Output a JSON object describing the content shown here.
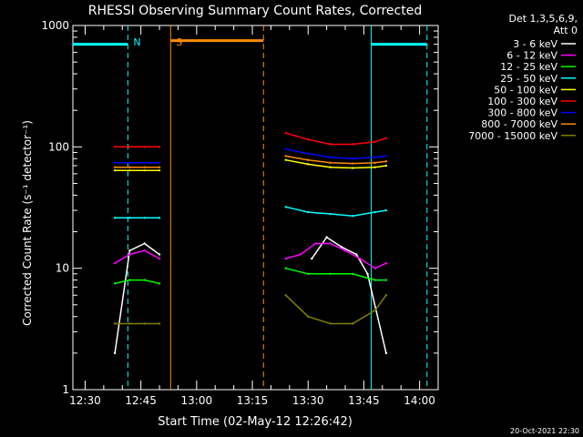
{
  "chart_data": {
    "type": "line",
    "title": "RHESSI Observing Summary Count Rates, Corrected",
    "xlabel": "Start Time (02-May-12 12:26:42)",
    "ylabel": "Corrected Count Rate (s⁻¹ detector⁻¹)",
    "y_scale": "log",
    "ylim": [
      1,
      1000
    ],
    "xlim": [
      "12:26:42",
      "14:05:00"
    ],
    "x_ticks": [
      "12:30",
      "12:45",
      "13:00",
      "13:15",
      "13:30",
      "13:45",
      "14:00"
    ],
    "y_ticks": [
      "1",
      "10",
      "100",
      "1000"
    ],
    "legend_title": [
      "Det 1,3,5,6,9,",
      "Att 0"
    ],
    "legend_position": "right-outside",
    "footer_date": "20-Oct-2021 22:30",
    "series": [
      {
        "name": "3 - 6 keV",
        "color": "#ffffff",
        "x": [
          "12:38",
          "12:42",
          "12:46",
          "12:50",
          "13:31",
          "13:35",
          "13:39",
          "13:43",
          "13:46",
          "13:51"
        ],
        "y": [
          2,
          14,
          16,
          13,
          12,
          18,
          15,
          13,
          9,
          2
        ]
      },
      {
        "name": "6 - 12 keV",
        "color": "#ff00ff",
        "x": [
          "12:38",
          "12:42",
          "12:46",
          "12:50",
          "13:24",
          "13:28",
          "13:32",
          "13:36",
          "13:40",
          "13:44",
          "13:48",
          "13:51"
        ],
        "y": [
          11,
          13,
          14,
          12,
          12,
          13,
          16,
          16,
          14,
          12,
          10,
          11
        ]
      },
      {
        "name": "12 - 25 keV",
        "color": "#00ff00",
        "x": [
          "12:38",
          "12:42",
          "12:46",
          "12:50",
          "13:24",
          "13:30",
          "13:36",
          "13:42",
          "13:48",
          "13:51"
        ],
        "y": [
          7.5,
          8,
          8,
          7.5,
          10,
          9,
          9,
          9,
          8,
          8
        ]
      },
      {
        "name": "25 - 50 keV",
        "color": "#00ffff",
        "x": [
          "12:38",
          "12:42",
          "12:46",
          "12:50",
          "13:24",
          "13:30",
          "13:36",
          "13:42",
          "13:48",
          "13:51"
        ],
        "y": [
          26,
          26,
          26,
          26,
          32,
          29,
          28,
          27,
          29,
          30
        ]
      },
      {
        "name": "50 - 100 keV",
        "color": "#ffff00",
        "x": [
          "12:38",
          "12:42",
          "12:46",
          "12:50",
          "13:24",
          "13:30",
          "13:36",
          "13:42",
          "13:48",
          "13:51"
        ],
        "y": [
          64,
          64,
          64,
          64,
          78,
          72,
          68,
          67,
          68,
          70
        ]
      },
      {
        "name": "100 - 300 keV",
        "color": "#ff0000",
        "x": [
          "12:38",
          "12:42",
          "12:46",
          "12:50",
          "13:24",
          "13:30",
          "13:36",
          "13:42",
          "13:48",
          "13:51"
        ],
        "y": [
          100,
          100,
          100,
          100,
          130,
          115,
          105,
          105,
          110,
          118
        ]
      },
      {
        "name": "300 - 800 keV",
        "color": "#0000ff",
        "x": [
          "12:38",
          "12:42",
          "12:46",
          "12:50",
          "13:24",
          "13:30",
          "13:36",
          "13:42",
          "13:48",
          "13:51"
        ],
        "y": [
          74,
          74,
          74,
          74,
          96,
          88,
          82,
          80,
          82,
          84
        ]
      },
      {
        "name": "800 - 7000 keV",
        "color": "#ff8c00",
        "x": [
          "12:38",
          "12:42",
          "12:46",
          "12:50",
          "13:24",
          "13:30",
          "13:36",
          "13:42",
          "13:48",
          "13:51"
        ],
        "y": [
          68,
          68,
          68,
          68,
          84,
          78,
          74,
          73,
          74,
          76
        ]
      },
      {
        "name": "7000 - 15000 keV",
        "color": "#808000",
        "x": [
          "12:38",
          "12:42",
          "12:46",
          "12:50",
          "13:24",
          "13:30",
          "13:36",
          "13:42",
          "13:48",
          "13:51"
        ],
        "y": [
          3.5,
          3.5,
          3.5,
          3.5,
          6,
          4,
          3.5,
          3.5,
          4.5,
          6
        ]
      }
    ],
    "markers": [
      {
        "label": "N",
        "color": "#00ffff",
        "style": "dashed",
        "x": "12:41:30",
        "kind": "night-start"
      },
      {
        "label": "",
        "color": "#00ffff",
        "style": "solid",
        "x": "13:47",
        "kind": "night-end"
      },
      {
        "label": "",
        "color": "#00ffff",
        "style": "dashed",
        "x": "14:02",
        "kind": "night-start"
      },
      {
        "label": "S",
        "color": "#ff8c00",
        "style": "solid",
        "x": "12:53",
        "kind": "saa-start"
      },
      {
        "label": "",
        "color": "#ff8c00",
        "style": "dashed",
        "x": "13:18",
        "kind": "saa-end"
      }
    ],
    "bars": [
      {
        "color": "#00ffff",
        "from": "12:26:42",
        "to": "12:41:30",
        "y": 700
      },
      {
        "color": "#ff8c00",
        "from": "12:53",
        "to": "13:18",
        "y": 750
      },
      {
        "color": "#00ffff",
        "from": "13:47",
        "to": "14:02",
        "y": 700
      }
    ]
  }
}
